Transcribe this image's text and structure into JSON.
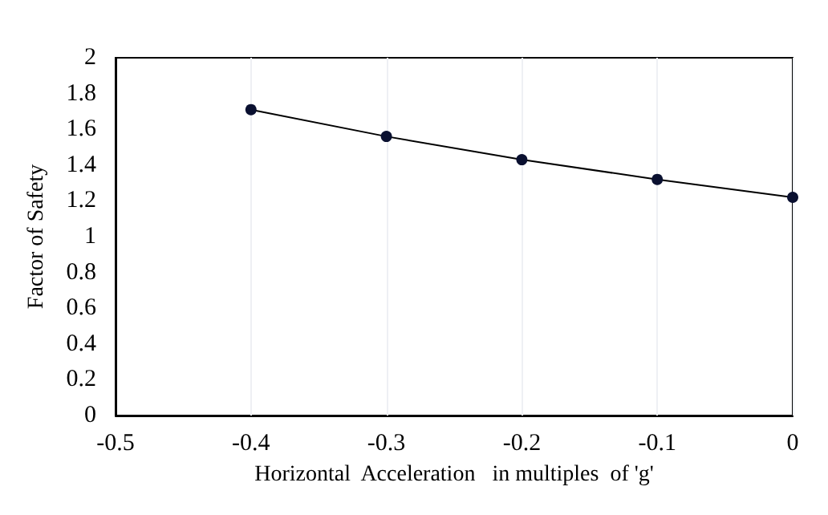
{
  "chart_data": {
    "type": "line",
    "xlabel": "Horizontal  Acceleration   in multiples  of 'g'",
    "ylabel": "Factor of Safety",
    "x": [
      -0.4,
      -0.3,
      -0.2,
      -0.1,
      0
    ],
    "series": [
      {
        "color": "#0a1030",
        "values": [
          1.71,
          1.56,
          1.43,
          1.32,
          1.22
        ]
      }
    ],
    "xlim": [
      -0.5,
      0
    ],
    "xticks": [
      -0.5,
      -0.4,
      -0.3,
      -0.2,
      -0.1,
      0
    ],
    "ylim": [
      0,
      2
    ],
    "yticks": [
      0,
      0.2,
      0.4,
      0.6,
      0.8,
      1,
      1.2,
      1.4,
      1.6,
      1.8,
      2
    ],
    "grid": "x",
    "marker": "circle",
    "line_style": "solid"
  }
}
